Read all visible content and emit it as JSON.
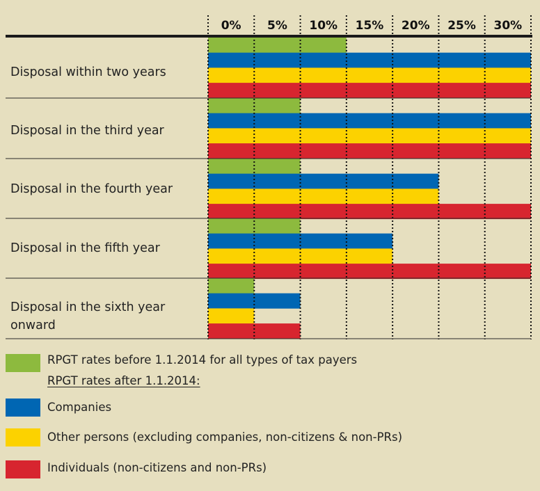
{
  "chart_data": {
    "type": "bar",
    "orientation": "horizontal",
    "x_unit": "%",
    "xlim": [
      0,
      35
    ],
    "x_ticks": [
      "0%",
      "5%",
      "10%",
      "15%",
      "20%",
      "25%",
      "30%"
    ],
    "grid": true,
    "categories": [
      "Disposal within two years",
      "Disposal in the third year",
      "Disposal in the fourth year",
      "Disposal in the fifth year",
      "Disposal in the sixth year onward"
    ],
    "series": [
      {
        "name": "RPGT rates before 1.1.2014 for all types of tax payers",
        "color": "#8dba3e",
        "values": [
          15,
          10,
          10,
          10,
          5
        ]
      },
      {
        "name": "Companies",
        "color": "#0066b3",
        "values": [
          35,
          35,
          25,
          20,
          10
        ]
      },
      {
        "name": "Other persons (excluding companies, non-citizens & non-PRs)",
        "color": "#fcd200",
        "values": [
          35,
          35,
          25,
          20,
          5
        ]
      },
      {
        "name": "Individuals (non-citizens and non-PRs)",
        "color": "#d7252f",
        "values": [
          35,
          35,
          35,
          35,
          10
        ]
      }
    ]
  },
  "legend": {
    "before_label": "RPGT rates before 1.1.2014 for all types of tax payers",
    "after_heading": "RPGT rates after 1.1.2014:",
    "companies_label": "Companies",
    "other_persons_label": "Other persons (excluding companies, non-citizens & non-PRs)",
    "individuals_label": "Individuals (non-citizens and non-PRs)"
  },
  "colors": {
    "background": "#e6dfbf",
    "green": "#8dba3e",
    "blue": "#0066b3",
    "yellow": "#fcd200",
    "red": "#d7252f"
  }
}
